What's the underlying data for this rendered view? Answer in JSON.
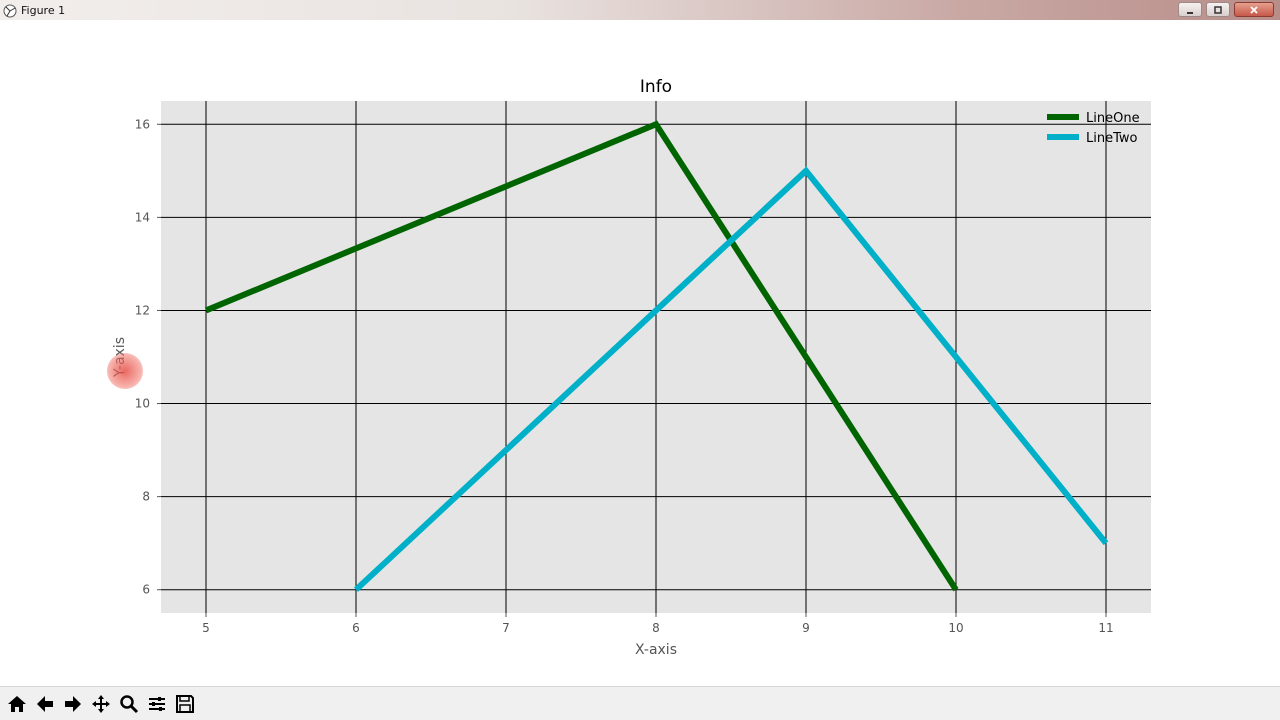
{
  "window": {
    "title": "Figure 1"
  },
  "toolbar": {
    "buttons": [
      "home-icon",
      "back-arrow-icon",
      "forward-arrow-icon",
      "pan-icon",
      "zoom-icon",
      "configure-subplots-icon",
      "save-icon"
    ]
  },
  "colors": {
    "plot_bg": "#e5e5e5",
    "grid": "#000000",
    "line_one": "#006400",
    "line_two": "#00b0c8"
  },
  "chart_data": {
    "type": "line",
    "title": "Info",
    "xlabel": "X-axis",
    "ylabel": "Y-axis",
    "xlim": [
      4.7,
      11.3
    ],
    "ylim": [
      5.5,
      16.5
    ],
    "xticks": [
      5,
      6,
      7,
      8,
      9,
      10,
      11
    ],
    "yticks": [
      6,
      8,
      10,
      12,
      14,
      16
    ],
    "grid": true,
    "legend_position": "top-right",
    "series": [
      {
        "name": "LineOne",
        "color": "#006400",
        "x": [
          5,
          8,
          10
        ],
        "y": [
          12,
          16,
          6
        ]
      },
      {
        "name": "LineTwo",
        "color": "#00b0c8",
        "x": [
          6,
          9,
          11
        ],
        "y": [
          6,
          15,
          7
        ]
      }
    ]
  }
}
